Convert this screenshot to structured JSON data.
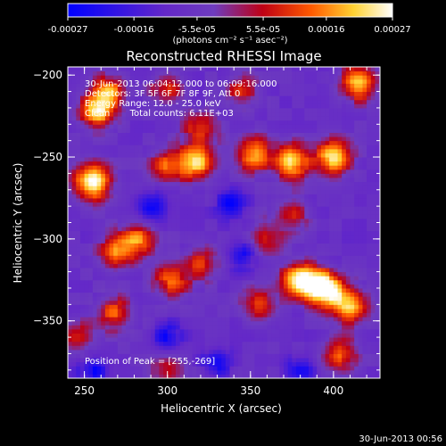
{
  "colorbar": {
    "ticks": [
      "-0.00027",
      "-0.00016",
      "-5.5e-05",
      "5.5e-05",
      "0.00016",
      "0.00027"
    ],
    "units": "(photons cm⁻² s⁻¹ asec⁻²)",
    "colors": [
      "#0000ff",
      "#6a00cc",
      "#c00000",
      "#ff6a00",
      "#ffdd33",
      "#ffffff"
    ],
    "range": [
      -0.00027,
      0.00027
    ]
  },
  "title": "Reconstructed RHESSI Image",
  "annotations": {
    "time_range": "30-Jun-2013 06:04:12.000 to 06:09:16.000",
    "detectors": "Detectors: 3F 5F 6F 7F 8F 9F, Att 0",
    "energy": "Energy Range: 12.0 - 25.0 keV",
    "clean": "Clean       Total counts: 6.11E+03",
    "peak": "Position of Peak = [255,-269]"
  },
  "footer": {
    "timestamp": "30-Jun-2013 00:56"
  },
  "chart_data": {
    "type": "heatmap",
    "title": "Reconstructed RHESSI Image",
    "xlabel": "Heliocentric X (arcsec)",
    "ylabel": "Heliocentric Y (arcsec)",
    "xlim": [
      240,
      428
    ],
    "ylim": [
      -385,
      -195
    ],
    "xticks": [
      250,
      300,
      350,
      400
    ],
    "yticks": [
      -200,
      -250,
      -300,
      -350
    ],
    "xtick_labels": [
      "250",
      "300",
      "350",
      "400"
    ],
    "ytick_labels": [
      "−200",
      "−250",
      "−300",
      "−350"
    ],
    "peak_position": [
      255,
      -269
    ],
    "sources": [
      {
        "x": 255,
        "y": -265,
        "intensity": 1.0
      },
      {
        "x": 258,
        "y": -222,
        "intensity": 0.75
      },
      {
        "x": 265,
        "y": -210,
        "intensity": 0.6
      },
      {
        "x": 318,
        "y": -253,
        "intensity": 0.75
      },
      {
        "x": 300,
        "y": -255,
        "intensity": 0.55
      },
      {
        "x": 300,
        "y": -208,
        "intensity": 0.45
      },
      {
        "x": 345,
        "y": -210,
        "intensity": 0.4
      },
      {
        "x": 352,
        "y": -248,
        "intensity": 0.65
      },
      {
        "x": 375,
        "y": -252,
        "intensity": 0.85
      },
      {
        "x": 400,
        "y": -250,
        "intensity": 0.8
      },
      {
        "x": 415,
        "y": -205,
        "intensity": 0.75
      },
      {
        "x": 320,
        "y": -232,
        "intensity": 0.5
      },
      {
        "x": 395,
        "y": -330,
        "intensity": 1.0
      },
      {
        "x": 380,
        "y": -325,
        "intensity": 0.9
      },
      {
        "x": 410,
        "y": -340,
        "intensity": 0.75
      },
      {
        "x": 355,
        "y": -340,
        "intensity": 0.45
      },
      {
        "x": 405,
        "y": -370,
        "intensity": 0.55
      },
      {
        "x": 270,
        "y": -308,
        "intensity": 0.6
      },
      {
        "x": 283,
        "y": -300,
        "intensity": 0.55
      },
      {
        "x": 268,
        "y": -345,
        "intensity": 0.55
      },
      {
        "x": 302,
        "y": -325,
        "intensity": 0.55
      },
      {
        "x": 320,
        "y": -315,
        "intensity": 0.45
      },
      {
        "x": 300,
        "y": -380,
        "intensity": 0.4
      },
      {
        "x": 375,
        "y": -285,
        "intensity": 0.4
      },
      {
        "x": 360,
        "y": -300,
        "intensity": 0.35
      },
      {
        "x": 245,
        "y": -360,
        "intensity": 0.45
      }
    ],
    "minima": [
      {
        "x": 290,
        "y": -280
      },
      {
        "x": 338,
        "y": -278
      },
      {
        "x": 345,
        "y": -310
      },
      {
        "x": 300,
        "y": -360
      },
      {
        "x": 380,
        "y": -380
      },
      {
        "x": 330,
        "y": -375
      },
      {
        "x": 255,
        "y": -380
      }
    ]
  }
}
